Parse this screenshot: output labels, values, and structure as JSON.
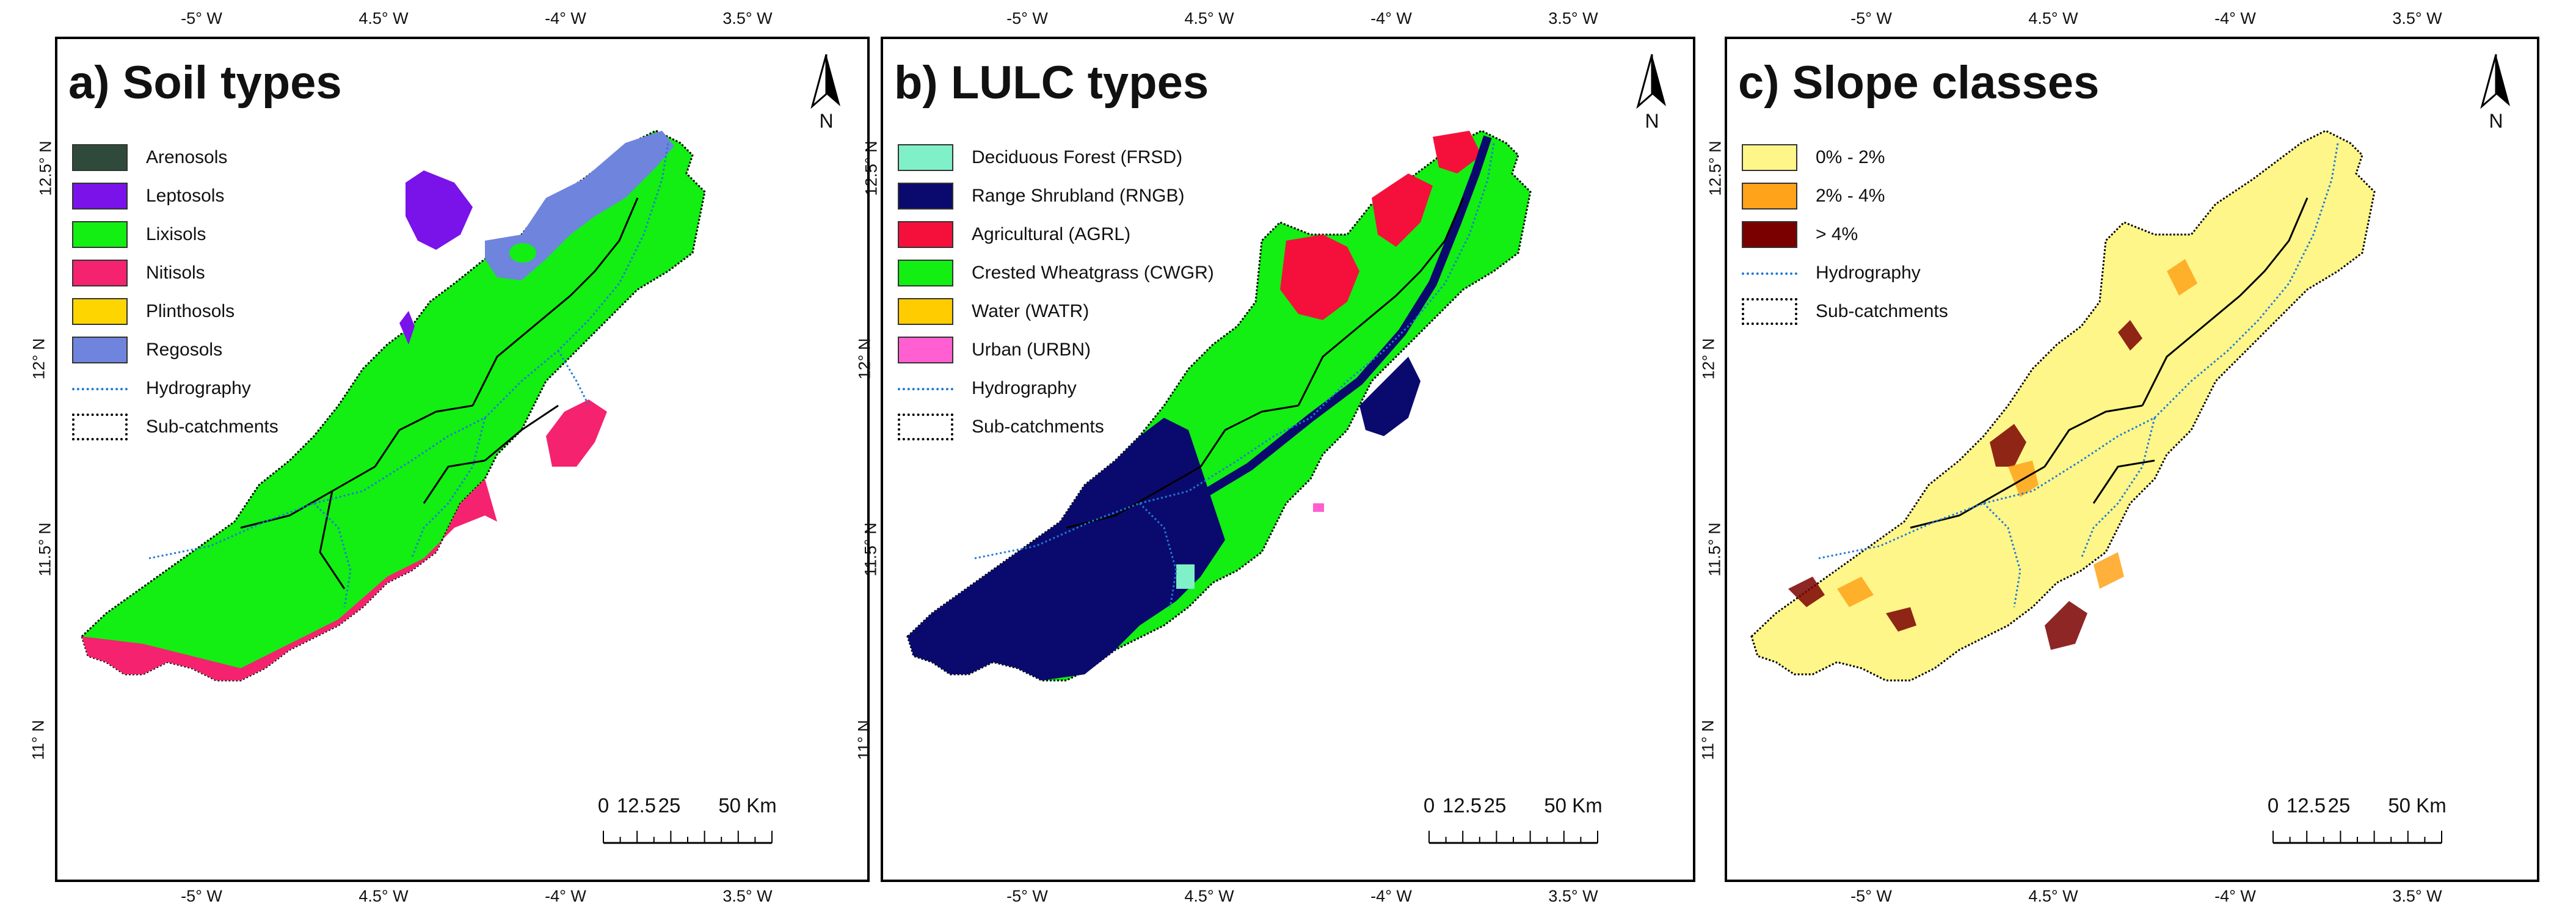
{
  "panels": [
    {
      "title": "a) Soil types",
      "legend": [
        {
          "label": "Arenosols",
          "color": "#2f4a3a",
          "kind": "fill"
        },
        {
          "label": "Leptosols",
          "color": "#7a12ea",
          "kind": "fill"
        },
        {
          "label": "Lixisols",
          "color": "#13ee13",
          "kind": "fill"
        },
        {
          "label": "Nitisols",
          "color": "#f5226f",
          "kind": "fill"
        },
        {
          "label": "Plinthosols",
          "color": "#ffd500",
          "kind": "fill"
        },
        {
          "label": "Regosols",
          "color": "#6f84dd",
          "kind": "fill"
        },
        {
          "label": "Hydrography",
          "color": "#1e7ad6",
          "kind": "line"
        },
        {
          "label": "Sub-catchments",
          "color": "#000000",
          "kind": "outline"
        }
      ],
      "north": "N",
      "scale": [
        "0",
        "12.5",
        "25",
        "50 Km"
      ]
    },
    {
      "title": "b) LULC types",
      "legend": [
        {
          "label": "Deciduous Forest (FRSD)",
          "color": "#7ff0c8",
          "kind": "fill"
        },
        {
          "label": "Range Shrubland (RNGB)",
          "color": "#0a0a6e",
          "kind": "fill"
        },
        {
          "label": "Agricultural (AGRL)",
          "color": "#f5103c",
          "kind": "fill"
        },
        {
          "label": "Crested Wheatgrass (CWGR)",
          "color": "#13ee13",
          "kind": "fill"
        },
        {
          "label": "Water (WATR)",
          "color": "#ffcc00",
          "kind": "fill"
        },
        {
          "label": "Urban (URBN)",
          "color": "#ff5fd0",
          "kind": "fill"
        },
        {
          "label": "Hydrography",
          "color": "#1e7ad6",
          "kind": "line"
        },
        {
          "label": "Sub-catchments",
          "color": "#000000",
          "kind": "outline"
        }
      ],
      "north": "N",
      "scale": [
        "0",
        "12.5",
        "25",
        "50 Km"
      ]
    },
    {
      "title": "c) Slope classes",
      "legend": [
        {
          "label": "0% - 2%",
          "color": "#fff68a",
          "kind": "fill"
        },
        {
          "label": "2% - 4%",
          "color": "#ffa31a",
          "kind": "fill"
        },
        {
          "label": "> 4%",
          "color": "#7a0000",
          "kind": "fill"
        },
        {
          "label": "Hydrography",
          "color": "#1e7ad6",
          "kind": "line"
        },
        {
          "label": "Sub-catchments",
          "color": "#000000",
          "kind": "outline"
        }
      ],
      "north": "N",
      "scale": [
        "0",
        "12.5",
        "25",
        "50 Km"
      ]
    }
  ],
  "longitude_ticks": [
    "-5° W",
    "4.5° W",
    "-4° W",
    "3.5° W"
  ],
  "latitude_ticks": [
    "12.5° N",
    "12° N",
    "11.5° N",
    "11° N"
  ]
}
